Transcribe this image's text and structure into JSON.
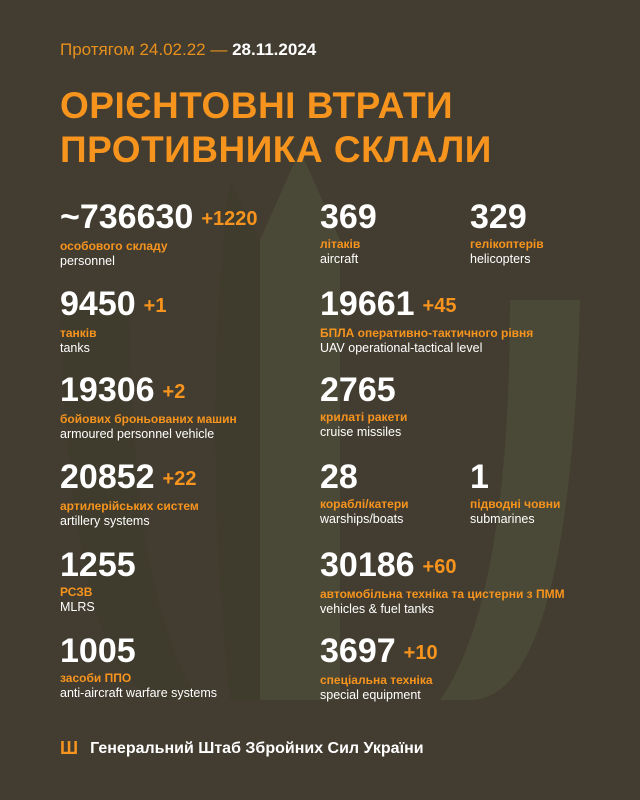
{
  "header": {
    "period_prefix": "Протягом 24.02.22 —",
    "period_date": "28.11.2024",
    "title_line1": "ОРІЄНТОВНІ ВТРАТИ",
    "title_line2": "ПРОТИВНИКА СКЛАЛИ"
  },
  "stats": [
    {
      "value": "~736630",
      "delta": "+1220",
      "ua": "особового складу",
      "en": "personnel"
    },
    {
      "value": "369",
      "delta": "",
      "ua": "літаків",
      "en": "aircraft"
    },
    {
      "value": "329",
      "delta": "",
      "ua": "гелікоптерів",
      "en": "helicopters"
    },
    {
      "value": "9450",
      "delta": "+1",
      "ua": "танків",
      "en": "tanks"
    },
    {
      "value": "19661",
      "delta": "+45",
      "ua": "БПЛА оперативно-тактичного рівня",
      "en": "UAV operational-tactical level"
    },
    {
      "value": "19306",
      "delta": "+2",
      "ua": "бойових броньованих машин",
      "en": "armoured personnel vehicle"
    },
    {
      "value": "2765",
      "delta": "",
      "ua": "крилаті ракети",
      "en": "cruise missiles"
    },
    {
      "value": "20852",
      "delta": "+22",
      "ua": "артилерійських систем",
      "en": "artillery systems"
    },
    {
      "value": "28",
      "delta": "",
      "ua": "кораблі/катери",
      "en": "warships/boats"
    },
    {
      "value": "1",
      "delta": "",
      "ua": "підводні човни",
      "en": "submarines"
    },
    {
      "value": "1255",
      "delta": "",
      "ua": "РСЗВ",
      "en": "MLRS"
    },
    {
      "value": "30186",
      "delta": "+60",
      "ua": "автомобільна техніка та цистерни з ПММ",
      "en": "vehicles & fuel tanks"
    },
    {
      "value": "1005",
      "delta": "",
      "ua": "засоби ППО",
      "en": "anti-aircraft warfare systems"
    },
    {
      "value": "3697",
      "delta": "+10",
      "ua": "спеціальна техніка",
      "en": "special equipment"
    }
  ],
  "footer": {
    "icon": "trident-icon",
    "text": "Генеральний Штаб Збройних Сил України"
  },
  "colors": {
    "background": "#433d31",
    "accent": "#f7941d",
    "text": "#ffffff"
  }
}
